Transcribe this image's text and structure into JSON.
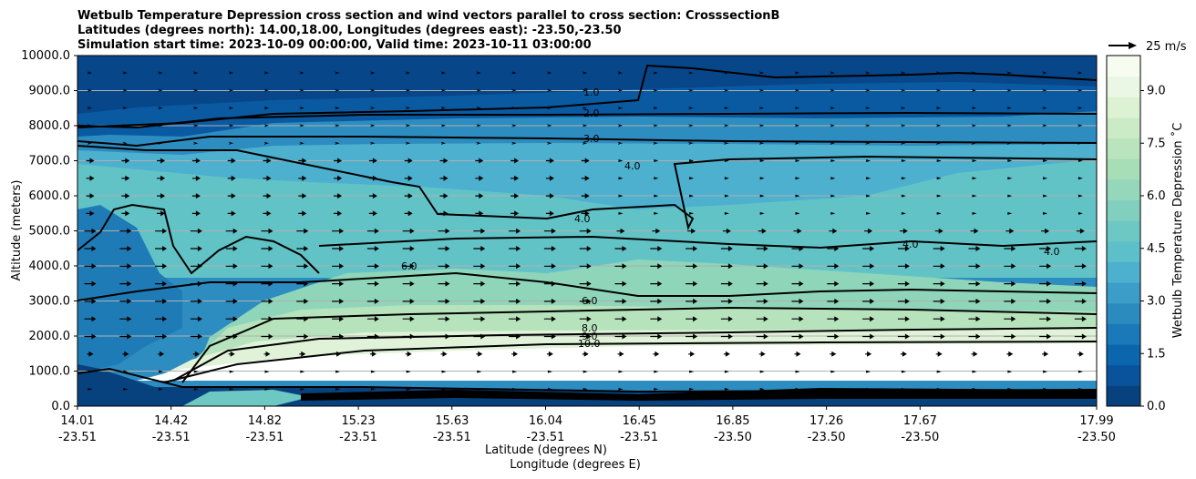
{
  "chart_data": {
    "type": "heatmap",
    "title_lines": [
      "Wetbulb Temperature Depression cross section and wind vectors parallel to cross section: CrosssectionB",
      "Latitudes (degrees north): 14.00,18.00, Longitudes (degrees east): -23.50,-23.50",
      "Simulation start time: 2023-10-09 00:00:00, Valid time: 2023-10-11 03:00:00"
    ],
    "ylabel": "Altitude (meters)",
    "xlabel_lines": [
      "Latitude (degrees N)",
      "Longitude (degrees E)"
    ],
    "ylim": [
      0,
      10000
    ],
    "y_ticks": [
      "0.0",
      "1000.0",
      "2000.0",
      "3000.0",
      "4000.0",
      "5000.0",
      "6000.0",
      "7000.0",
      "8000.0",
      "9000.0",
      "10000.0"
    ],
    "x_ticks": [
      {
        "lat": "14.01",
        "lon": "-23.51"
      },
      {
        "lat": "14.42",
        "lon": "-23.51"
      },
      {
        "lat": "14.82",
        "lon": "-23.51"
      },
      {
        "lat": "15.23",
        "lon": "-23.51"
      },
      {
        "lat": "15.63",
        "lon": "-23.51"
      },
      {
        "lat": "16.04",
        "lon": "-23.51"
      },
      {
        "lat": "16.45",
        "lon": "-23.51"
      },
      {
        "lat": "16.85",
        "lon": "-23.50"
      },
      {
        "lat": "17.26",
        "lon": "-23.50"
      },
      {
        "lat": "17.67",
        "lon": "-23.50"
      },
      {
        "lat": "17.99",
        "lon": "-23.50"
      }
    ],
    "colorbar": {
      "label": "Wetbulb Temperature Depression ˚C",
      "range": [
        0,
        10
      ],
      "ticks": [
        "0.0",
        "1.5",
        "3.0",
        "4.5",
        "6.0",
        "7.5",
        "9.0"
      ],
      "colors": [
        "#08427e",
        "#09539d",
        "#0c66ad",
        "#1a79b8",
        "#2b8bbf",
        "#3b9dc8",
        "#4cb0ce",
        "#5dbfc9",
        "#6dc8c3",
        "#81d0bd",
        "#94d7ba",
        "#a7ddb7",
        "#b9e4bd",
        "#cbebc7",
        "#dcf2d2",
        "#eaf7e4",
        "#f7fcf0"
      ]
    },
    "wind_key": {
      "label": "25 m/s",
      "speed": 25
    },
    "contour_labels": [
      "1.0",
      "2.0",
      "3.0",
      "4.0",
      "6.0",
      "8.0",
      "9.0",
      "10.0"
    ],
    "grid": true
  }
}
